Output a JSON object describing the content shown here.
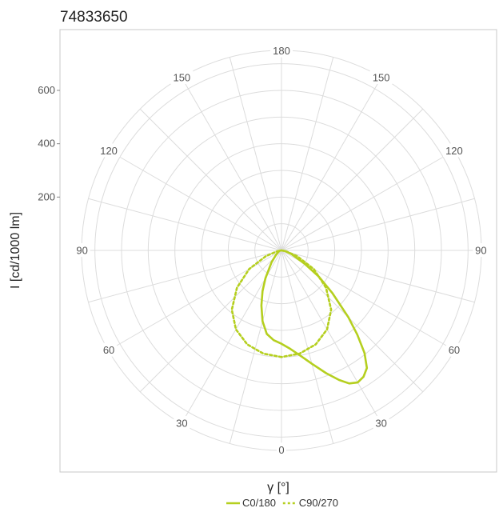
{
  "chart_data": {
    "type": "polar",
    "title": "74833650",
    "xlabel": "γ [°]",
    "ylabel": "I [cd/1000 lm]",
    "r_max": 750,
    "r_ticks": [
      200,
      400,
      600
    ],
    "r_tick_labels": [
      "200",
      "400",
      "600"
    ],
    "rings": [
      100,
      200,
      300,
      400,
      500,
      600,
      700
    ],
    "spoke_step_deg": 15,
    "angle_labels": [
      {
        "text": "0",
        "angle": 0
      },
      {
        "text": "30",
        "angle": 30
      },
      {
        "text": "60",
        "angle": 60
      },
      {
        "text": "90",
        "angle": 90
      },
      {
        "text": "120",
        "angle": 120
      },
      {
        "text": "150",
        "angle": 150
      },
      {
        "text": "180",
        "angle": 180
      },
      {
        "text": "150",
        "angle": 210
      },
      {
        "text": "120",
        "angle": 240
      },
      {
        "text": "90",
        "angle": 270
      },
      {
        "text": "60",
        "angle": 300
      },
      {
        "text": "30",
        "angle": 330
      }
    ],
    "legend_position": "bottom",
    "series": [
      {
        "name": "C0/180",
        "color": "#b5cf1f",
        "dash": "solid",
        "points": [
          {
            "angle": 0,
            "r": 350
          },
          {
            "angle": 5,
            "r": 338
          },
          {
            "angle": 10,
            "r": 318
          },
          {
            "angle": 15,
            "r": 275
          },
          {
            "angle": 20,
            "r": 220
          },
          {
            "angle": 25,
            "r": 168
          },
          {
            "angle": 30,
            "r": 120
          },
          {
            "angle": 40,
            "r": 58
          },
          {
            "angle": 50,
            "r": 28
          },
          {
            "angle": 60,
            "r": 16
          },
          {
            "angle": 70,
            "r": 10
          },
          {
            "angle": 80,
            "r": 6
          },
          {
            "angle": 90,
            "r": 0
          },
          {
            "angle": 270,
            "r": 0
          },
          {
            "angle": 280,
            "r": 15
          },
          {
            "angle": 290,
            "r": 40
          },
          {
            "angle": 300,
            "r": 100
          },
          {
            "angle": 305,
            "r": 170
          },
          {
            "angle": 310,
            "r": 250
          },
          {
            "angle": 315,
            "r": 355
          },
          {
            "angle": 318,
            "r": 425
          },
          {
            "angle": 321,
            "r": 495
          },
          {
            "angle": 324,
            "r": 545
          },
          {
            "angle": 327,
            "r": 565
          },
          {
            "angle": 330,
            "r": 572
          },
          {
            "angle": 333,
            "r": 560
          },
          {
            "angle": 336,
            "r": 532
          },
          {
            "angle": 340,
            "r": 490
          },
          {
            "angle": 345,
            "r": 440
          },
          {
            "angle": 350,
            "r": 400
          },
          {
            "angle": 355,
            "r": 370
          },
          {
            "angle": 360,
            "r": 350
          }
        ]
      },
      {
        "name": "C90/270",
        "color": "#b5cf1f",
        "dash": "dotted",
        "points": [
          {
            "angle": 0,
            "r": 400
          },
          {
            "angle": 10,
            "r": 393
          },
          {
            "angle": 20,
            "r": 375
          },
          {
            "angle": 30,
            "r": 342
          },
          {
            "angle": 40,
            "r": 290
          },
          {
            "angle": 50,
            "r": 218
          },
          {
            "angle": 60,
            "r": 140
          },
          {
            "angle": 70,
            "r": 62
          },
          {
            "angle": 80,
            "r": 15
          },
          {
            "angle": 90,
            "r": 0
          },
          {
            "angle": 270,
            "r": 0
          },
          {
            "angle": 280,
            "r": 15
          },
          {
            "angle": 290,
            "r": 62
          },
          {
            "angle": 300,
            "r": 140
          },
          {
            "angle": 310,
            "r": 218
          },
          {
            "angle": 320,
            "r": 290
          },
          {
            "angle": 330,
            "r": 342
          },
          {
            "angle": 340,
            "r": 375
          },
          {
            "angle": 350,
            "r": 393
          },
          {
            "angle": 360,
            "r": 400
          }
        ]
      }
    ]
  }
}
